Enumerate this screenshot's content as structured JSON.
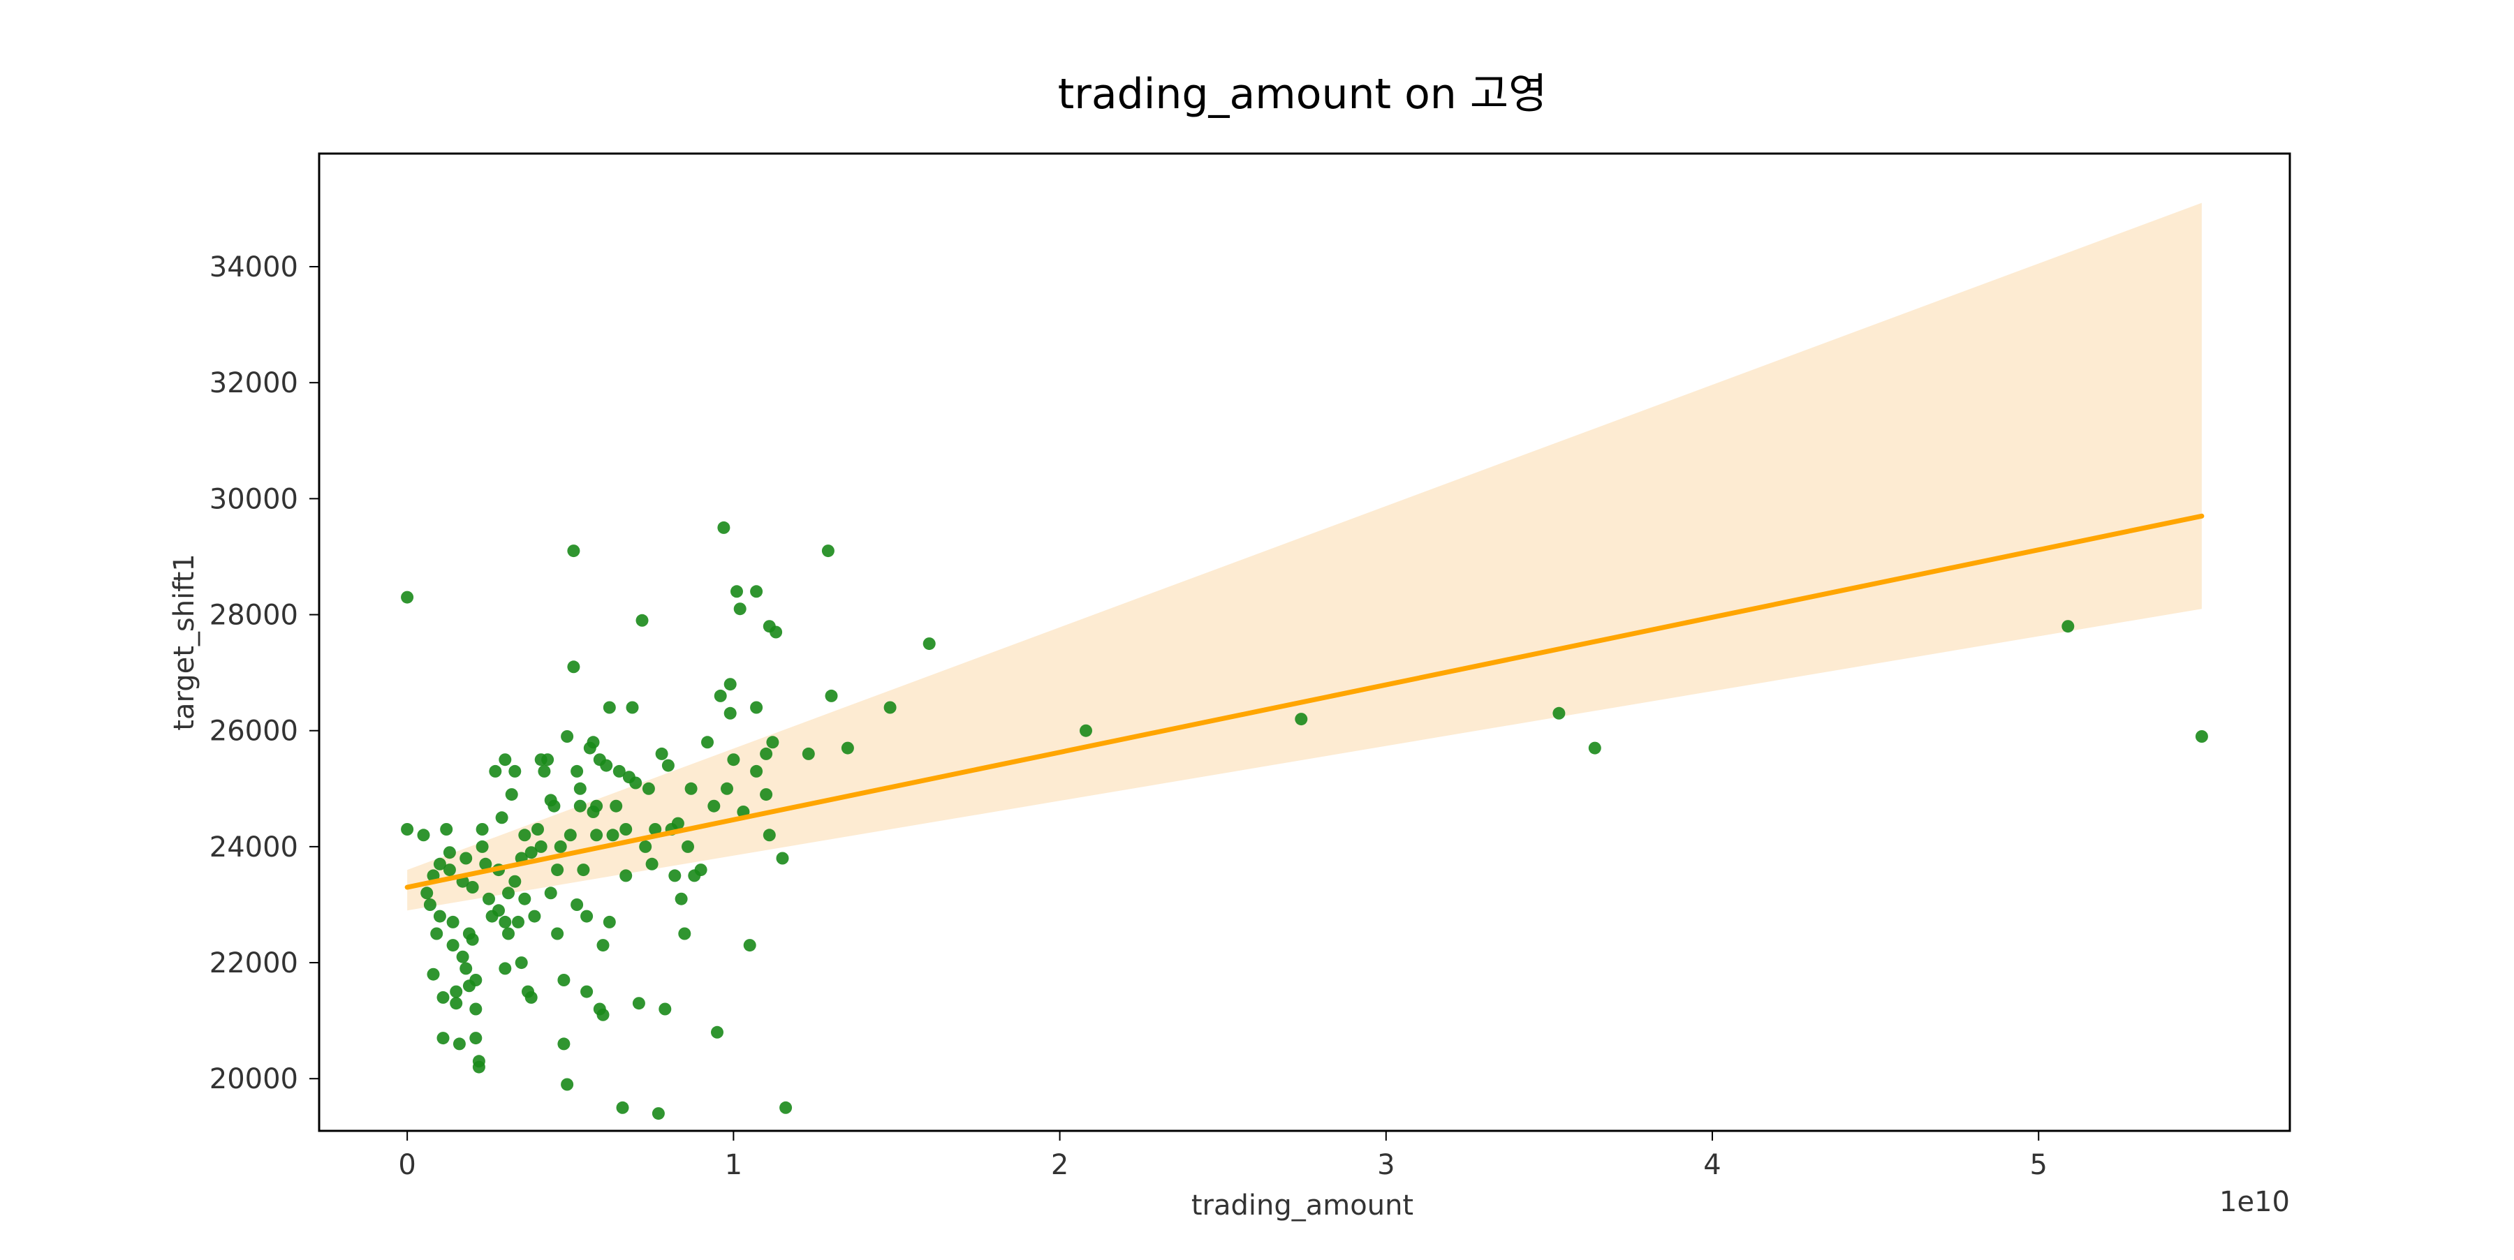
{
  "chart_data": {
    "type": "scatter",
    "title": "trading_amount on 고영",
    "xlabel": "trading_amount",
    "ylabel": "target_shift1",
    "x_offset_label": "1e10",
    "xlim": [
      -0.27,
      5.77
    ],
    "ylim": [
      19100,
      35950
    ],
    "x_ticks": [
      0,
      1,
      2,
      3,
      4,
      5
    ],
    "x_tick_labels": [
      "0",
      "1",
      "2",
      "3",
      "4",
      "5"
    ],
    "y_ticks": [
      20000,
      22000,
      24000,
      26000,
      28000,
      30000,
      32000,
      34000
    ],
    "y_tick_labels": [
      "20000",
      "22000",
      "24000",
      "26000",
      "28000",
      "30000",
      "32000",
      "34000"
    ],
    "grid": false,
    "colors": {
      "points": "#1a8a1a",
      "regression": "#ffa500",
      "band": "#fdebd2"
    },
    "regression": {
      "x": [
        0,
        5.5
      ],
      "y": [
        23300,
        29700
      ],
      "ci_upper": [
        23600,
        35100
      ],
      "ci_lower": [
        22900,
        28100
      ]
    },
    "series": [
      {
        "points": [
          [
            0.0,
            28300
          ],
          [
            0.0,
            24300
          ],
          [
            0.05,
            24200
          ],
          [
            0.06,
            23200
          ],
          [
            0.07,
            23000
          ],
          [
            0.08,
            23500
          ],
          [
            0.08,
            21800
          ],
          [
            0.09,
            22500
          ],
          [
            0.1,
            23700
          ],
          [
            0.1,
            22800
          ],
          [
            0.11,
            21400
          ],
          [
            0.11,
            20700
          ],
          [
            0.12,
            24300
          ],
          [
            0.13,
            23900
          ],
          [
            0.13,
            23600
          ],
          [
            0.14,
            22700
          ],
          [
            0.14,
            22300
          ],
          [
            0.15,
            21500
          ],
          [
            0.15,
            21300
          ],
          [
            0.16,
            20600
          ],
          [
            0.17,
            22100
          ],
          [
            0.17,
            23400
          ],
          [
            0.18,
            23800
          ],
          [
            0.18,
            21900
          ],
          [
            0.19,
            22500
          ],
          [
            0.19,
            21600
          ],
          [
            0.2,
            23300
          ],
          [
            0.2,
            22400
          ],
          [
            0.21,
            21700
          ],
          [
            0.21,
            20700
          ],
          [
            0.21,
            21200
          ],
          [
            0.22,
            20200
          ],
          [
            0.22,
            20300
          ],
          [
            0.23,
            24300
          ],
          [
            0.23,
            24000
          ],
          [
            0.24,
            23700
          ],
          [
            0.25,
            23100
          ],
          [
            0.26,
            22800
          ],
          [
            0.27,
            25300
          ],
          [
            0.28,
            23600
          ],
          [
            0.28,
            22900
          ],
          [
            0.29,
            24500
          ],
          [
            0.3,
            25500
          ],
          [
            0.3,
            22700
          ],
          [
            0.3,
            21900
          ],
          [
            0.31,
            23200
          ],
          [
            0.31,
            22500
          ],
          [
            0.32,
            24900
          ],
          [
            0.33,
            25300
          ],
          [
            0.33,
            23400
          ],
          [
            0.34,
            22700
          ],
          [
            0.35,
            23800
          ],
          [
            0.35,
            22000
          ],
          [
            0.36,
            24200
          ],
          [
            0.36,
            23100
          ],
          [
            0.37,
            21500
          ],
          [
            0.38,
            21400
          ],
          [
            0.38,
            23900
          ],
          [
            0.39,
            22800
          ],
          [
            0.4,
            24300
          ],
          [
            0.41,
            25500
          ],
          [
            0.41,
            24000
          ],
          [
            0.42,
            25300
          ],
          [
            0.43,
            25500
          ],
          [
            0.44,
            24800
          ],
          [
            0.44,
            23200
          ],
          [
            0.45,
            24700
          ],
          [
            0.46,
            23600
          ],
          [
            0.46,
            22500
          ],
          [
            0.47,
            24000
          ],
          [
            0.48,
            21700
          ],
          [
            0.48,
            20600
          ],
          [
            0.49,
            25900
          ],
          [
            0.49,
            19900
          ],
          [
            0.5,
            24200
          ],
          [
            0.51,
            27100
          ],
          [
            0.51,
            29100
          ],
          [
            0.52,
            25300
          ],
          [
            0.52,
            23000
          ],
          [
            0.53,
            25000
          ],
          [
            0.53,
            24700
          ],
          [
            0.54,
            23600
          ],
          [
            0.55,
            22800
          ],
          [
            0.55,
            21500
          ],
          [
            0.56,
            25700
          ],
          [
            0.57,
            25800
          ],
          [
            0.57,
            24600
          ],
          [
            0.58,
            24200
          ],
          [
            0.58,
            24700
          ],
          [
            0.59,
            25500
          ],
          [
            0.59,
            21200
          ],
          [
            0.6,
            21100
          ],
          [
            0.6,
            22300
          ],
          [
            0.61,
            25400
          ],
          [
            0.62,
            26400
          ],
          [
            0.62,
            22700
          ],
          [
            0.63,
            24200
          ],
          [
            0.64,
            24700
          ],
          [
            0.65,
            25300
          ],
          [
            0.66,
            19500
          ],
          [
            0.67,
            24300
          ],
          [
            0.67,
            23500
          ],
          [
            0.68,
            25200
          ],
          [
            0.69,
            26400
          ],
          [
            0.7,
            25100
          ],
          [
            0.71,
            21300
          ],
          [
            0.72,
            27900
          ],
          [
            0.73,
            24000
          ],
          [
            0.74,
            25000
          ],
          [
            0.75,
            23700
          ],
          [
            0.76,
            24300
          ],
          [
            0.77,
            19400
          ],
          [
            0.78,
            25600
          ],
          [
            0.79,
            21200
          ],
          [
            0.8,
            25400
          ],
          [
            0.81,
            24300
          ],
          [
            0.82,
            23500
          ],
          [
            0.83,
            24400
          ],
          [
            0.84,
            23100
          ],
          [
            0.85,
            22500
          ],
          [
            0.86,
            24000
          ],
          [
            0.87,
            25000
          ],
          [
            0.88,
            23500
          ],
          [
            0.9,
            23600
          ],
          [
            0.92,
            25800
          ],
          [
            0.94,
            24700
          ],
          [
            0.95,
            20800
          ],
          [
            0.96,
            26600
          ],
          [
            0.97,
            29500
          ],
          [
            0.98,
            25000
          ],
          [
            0.99,
            26800
          ],
          [
            1.0,
            25500
          ],
          [
            1.01,
            28400
          ],
          [
            1.02,
            28100
          ],
          [
            1.03,
            24600
          ],
          [
            1.05,
            22300
          ],
          [
            1.07,
            25300
          ],
          [
            1.1,
            25600
          ],
          [
            1.11,
            27800
          ],
          [
            1.12,
            25800
          ],
          [
            1.13,
            27700
          ],
          [
            1.15,
            23800
          ],
          [
            1.16,
            19500
          ],
          [
            0.99,
            26300
          ],
          [
            1.07,
            28400
          ],
          [
            1.07,
            26400
          ],
          [
            1.1,
            24900
          ],
          [
            1.11,
            24200
          ],
          [
            1.23,
            25600
          ],
          [
            1.29,
            29100
          ],
          [
            1.3,
            26600
          ],
          [
            1.35,
            25700
          ],
          [
            1.48,
            26400
          ],
          [
            1.6,
            27500
          ],
          [
            2.08,
            26000
          ],
          [
            2.74,
            26200
          ],
          [
            3.53,
            26300
          ],
          [
            3.64,
            25700
          ],
          [
            5.09,
            27800
          ],
          [
            5.5,
            25900
          ]
        ]
      }
    ]
  }
}
